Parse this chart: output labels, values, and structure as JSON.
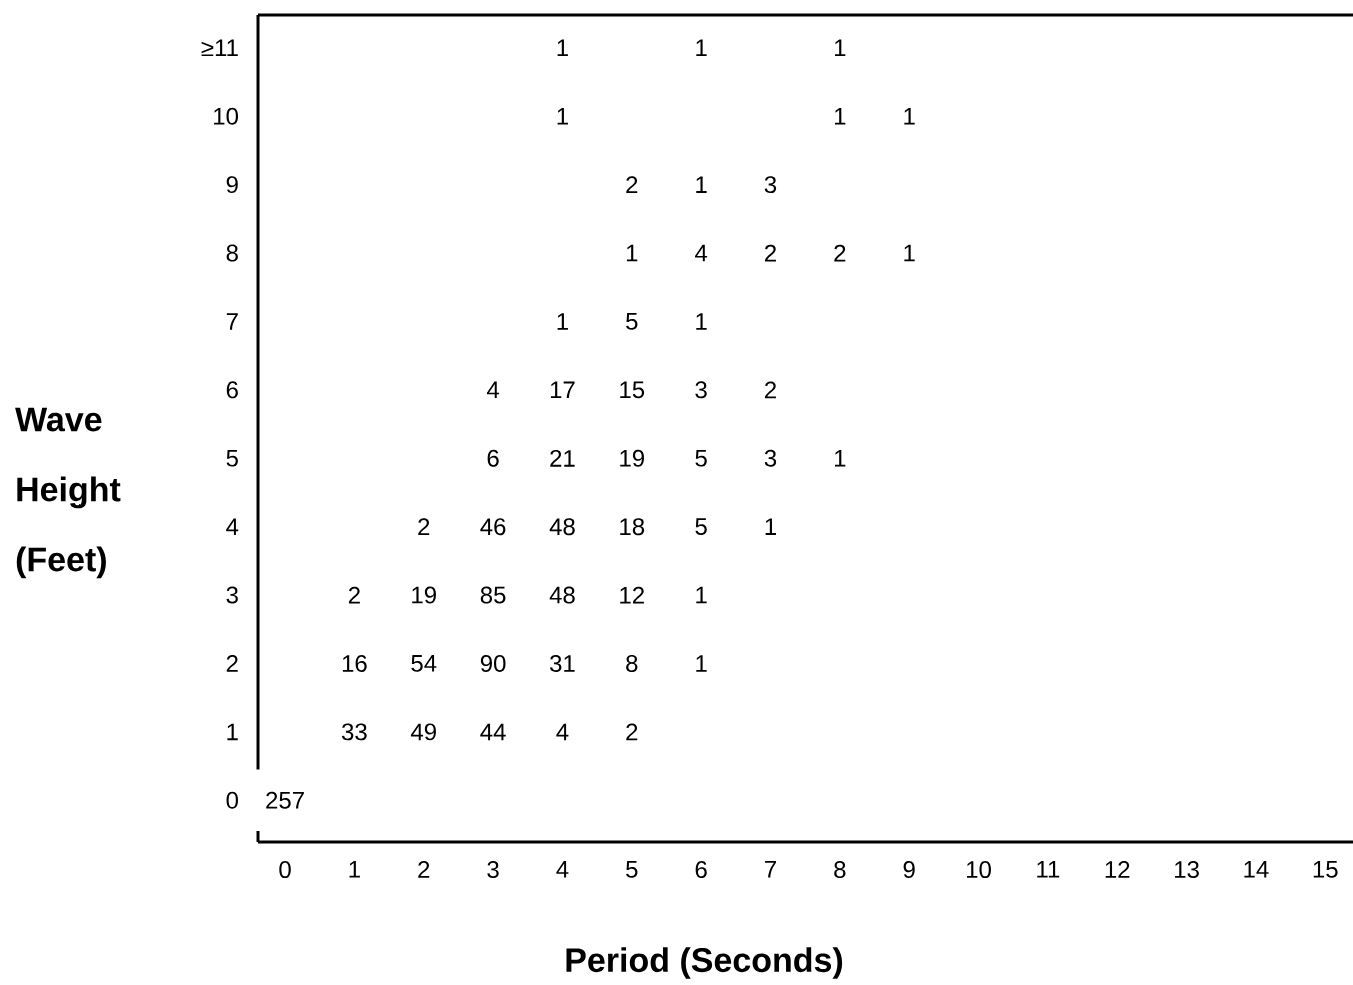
{
  "chart_data": {
    "type": "heatmap",
    "xlabel": "Period (Seconds)",
    "ylabel": "Wave Height (Feet)",
    "categories": [
      "0",
      "1",
      "2",
      "3",
      "4",
      "5",
      "6",
      "7",
      "8",
      "9",
      "10",
      "11",
      "12",
      "13",
      "14",
      "15"
    ],
    "y_categories": [
      "≥11",
      "10",
      "9",
      "8",
      "7",
      "6",
      "5",
      "4",
      "3",
      "2",
      "1",
      "0"
    ],
    "cells": [
      [
        null,
        null,
        null,
        null,
        1,
        null,
        1,
        null,
        1,
        null,
        null,
        null,
        null,
        null,
        null,
        null
      ],
      [
        null,
        null,
        null,
        null,
        1,
        null,
        null,
        null,
        1,
        1,
        null,
        null,
        null,
        null,
        null,
        null
      ],
      [
        null,
        null,
        null,
        null,
        null,
        2,
        1,
        3,
        null,
        null,
        null,
        null,
        null,
        null,
        null,
        null
      ],
      [
        null,
        null,
        null,
        null,
        null,
        1,
        4,
        2,
        2,
        1,
        null,
        null,
        null,
        null,
        null,
        null
      ],
      [
        null,
        null,
        null,
        null,
        1,
        5,
        1,
        null,
        null,
        null,
        null,
        null,
        null,
        null,
        null,
        null
      ],
      [
        null,
        null,
        null,
        4,
        17,
        15,
        3,
        2,
        null,
        null,
        null,
        null,
        null,
        null,
        null,
        null
      ],
      [
        null,
        null,
        null,
        6,
        21,
        19,
        5,
        3,
        1,
        null,
        null,
        null,
        null,
        null,
        null,
        null
      ],
      [
        null,
        null,
        2,
        46,
        48,
        18,
        5,
        1,
        null,
        null,
        null,
        null,
        null,
        null,
        null,
        null
      ],
      [
        null,
        2,
        19,
        85,
        48,
        12,
        1,
        null,
        null,
        null,
        null,
        null,
        null,
        null,
        null,
        null
      ],
      [
        null,
        16,
        54,
        90,
        31,
        8,
        1,
        null,
        null,
        null,
        null,
        null,
        null,
        null,
        null,
        null
      ],
      [
        null,
        33,
        49,
        44,
        4,
        2,
        null,
        null,
        null,
        null,
        null,
        null,
        null,
        null,
        null,
        null
      ],
      [
        257,
        null,
        null,
        null,
        null,
        null,
        null,
        null,
        null,
        null,
        null,
        null,
        null,
        null,
        null,
        null
      ]
    ],
    "data_labels": true
  }
}
